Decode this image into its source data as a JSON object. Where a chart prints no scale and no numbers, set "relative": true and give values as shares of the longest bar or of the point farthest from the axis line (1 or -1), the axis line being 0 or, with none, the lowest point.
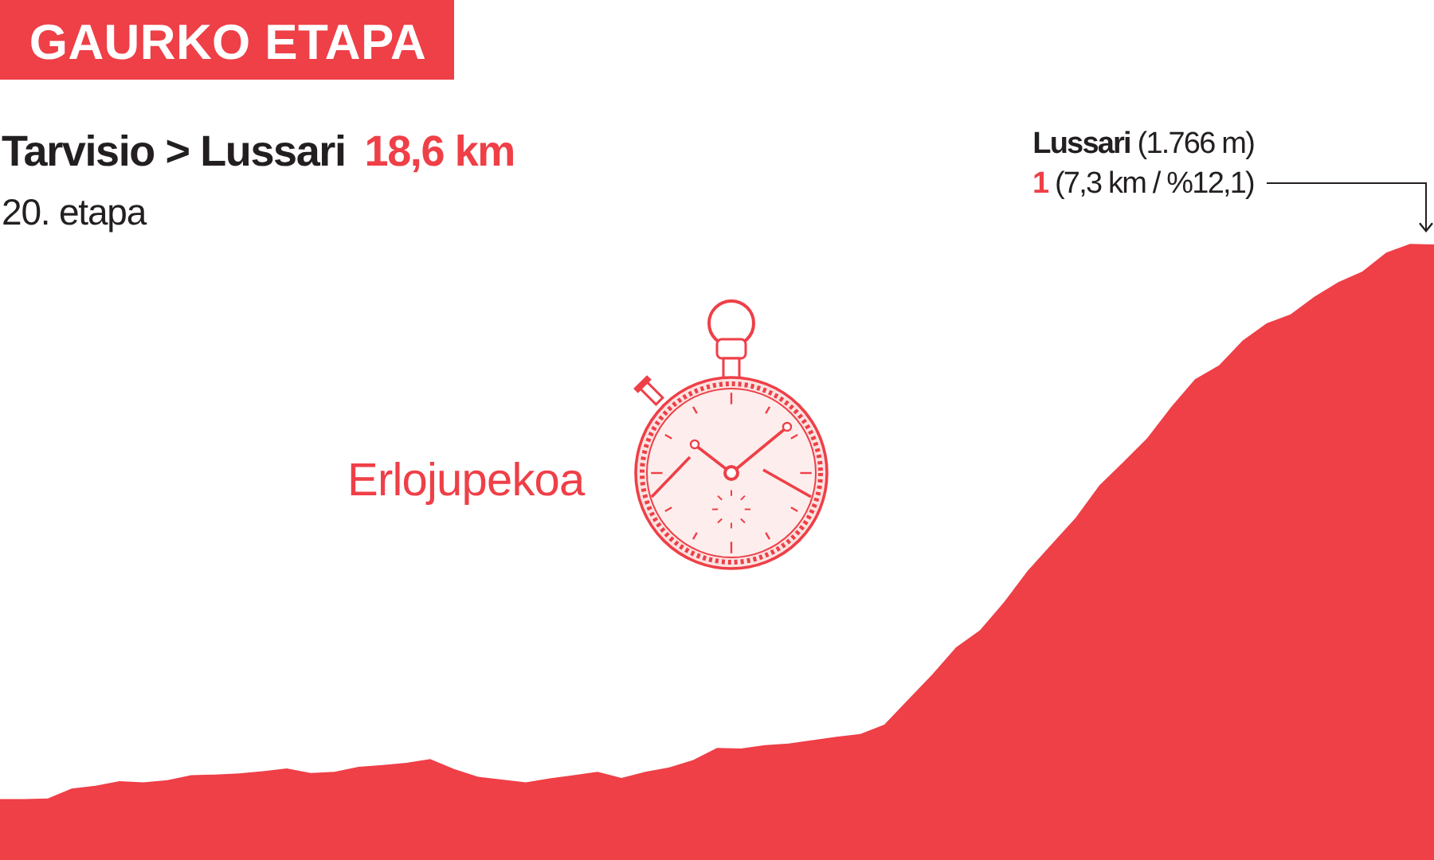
{
  "chart_data": {
    "type": "area",
    "title": "GAURKO ETAPA",
    "subtitle": "Tarvisio > Lussari",
    "categories": [
      null,
      null,
      null,
      null,
      null,
      null,
      null,
      null,
      null,
      null,
      null,
      null,
      null,
      null,
      null,
      null,
      null,
      null,
      null,
      null,
      null,
      null,
      null,
      null,
      null,
      null,
      null,
      null,
      null,
      null,
      null,
      null,
      null,
      null,
      null,
      null,
      null,
      null,
      null,
      null,
      null,
      null,
      null,
      null,
      null,
      null,
      null,
      null,
      null,
      null,
      null,
      null,
      null,
      null,
      null,
      null,
      null,
      null,
      null,
      null,
      null
    ],
    "values": [
      0,
      0,
      0.001,
      0.019,
      0.024,
      0.032,
      0.03,
      0.034,
      0.043,
      0.044,
      0.046,
      0.05,
      0.055,
      0.047,
      0.049,
      0.058,
      0.061,
      0.065,
      0.072,
      0.054,
      0.04,
      0.035,
      0.03,
      0.037,
      0.043,
      0.049,
      0.038,
      0.049,
      0.057,
      0.07,
      0.092,
      0.091,
      0.097,
      0.1,
      0.106,
      0.112,
      0.117,
      0.134,
      0.179,
      0.224,
      0.273,
      0.304,
      0.354,
      0.411,
      0.459,
      0.506,
      0.565,
      0.607,
      0.65,
      0.706,
      0.756,
      0.781,
      0.826,
      0.857,
      0.873,
      0.905,
      0.931,
      0.95,
      0.984,
      1,
      0.999
    ],
    "color": "#ef3f47",
    "relative": true,
    "annotations": [
      "18,6 km",
      "20. etapa",
      "Erlojupekoa",
      "Lussari (1.766 m)",
      "1 (7,3 km / %12,1)"
    ]
  }
}
